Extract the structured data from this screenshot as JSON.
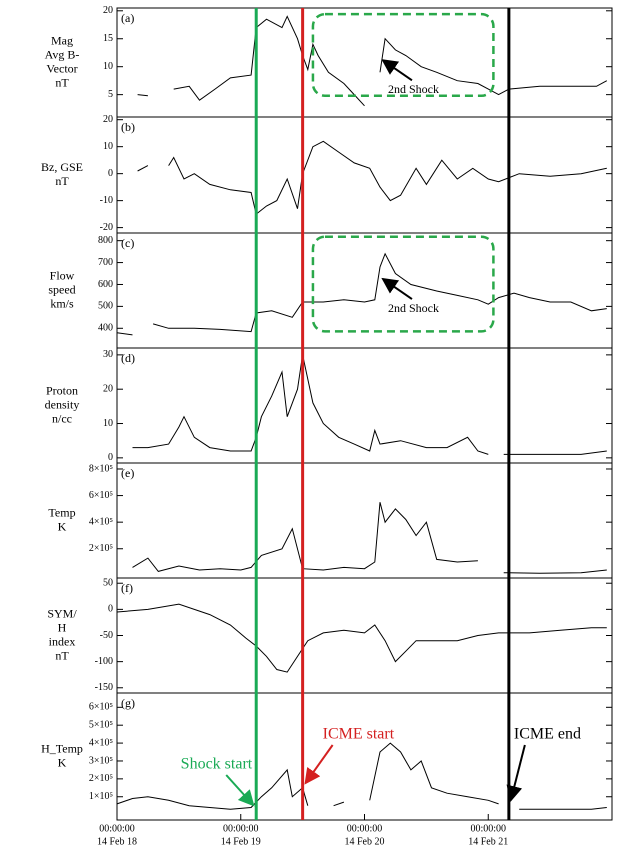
{
  "chart_data": [
    {
      "type": "line",
      "label": "(a)",
      "ylabel": [
        "Mag",
        "Avg B-",
        "Vector",
        "nT"
      ],
      "color": "#000000",
      "xlim": [
        "2014-02-18T00:00",
        "2014-02-22T00:00"
      ],
      "ylim": [
        1,
        20.5
      ],
      "yticks": [
        5,
        10,
        15,
        20
      ],
      "x": [
        "2014-02-18T04:00",
        "2014-02-18T06:00",
        "2014-02-18T08:00",
        "2014-02-18T11:00",
        "2014-02-18T14:00",
        "2014-02-18T16:00",
        "2014-02-18T19:00",
        "2014-02-18T22:00",
        "2014-02-19T02:00",
        "2014-02-19T03:00",
        "2014-02-19T05:00",
        "2014-02-19T08:00",
        "2014-02-19T09:00",
        "2014-02-19T11:00",
        "2014-02-19T12:00",
        "2014-02-19T13:00",
        "2014-02-19T14:00",
        "2014-02-19T15:00",
        "2014-02-19T17:00",
        "2014-02-19T20:00",
        "2014-02-19T22:00",
        "2014-02-20T00:00",
        "2014-02-20T01:00",
        "2014-02-20T03:00",
        "2014-02-20T04:00",
        "2014-02-20T06:00",
        "2014-02-20T08:00",
        "2014-02-20T11:00",
        "2014-02-20T14:00",
        "2014-02-20T18:00",
        "2014-02-20T22:00",
        "2014-02-21T00:00",
        "2014-02-21T02:00",
        "2014-02-21T04:00",
        "2014-02-21T10:00",
        "2014-02-21T16:00",
        "2014-02-21T21:00",
        "2014-02-21T23:00"
      ],
      "values": [
        5,
        4.8,
        null,
        6,
        6.5,
        4,
        6,
        8,
        8.5,
        17,
        18.5,
        17,
        19,
        15,
        12,
        9.5,
        14,
        12,
        9,
        7,
        5,
        3,
        null,
        9,
        15,
        13,
        12,
        10,
        9,
        7.5,
        7,
        6,
        5,
        6,
        6.5,
        6.5,
        6.5,
        7.5
      ],
      "box": {
        "x": [
          "2014-02-19T14:00",
          "2014-02-21T01:00"
        ],
        "y": [
          4.8,
          19.4
        ],
        "color": "#2aa84a"
      },
      "annotation": {
        "text": "2nd Shock",
        "x": "2014-02-20T03:00",
        "y": 11.5
      }
    },
    {
      "type": "line",
      "label": "(b)",
      "ylabel": [
        "Bz, GSE",
        "nT"
      ],
      "color": "#000000",
      "xlim": [
        "2014-02-18T00:00",
        "2014-02-22T00:00"
      ],
      "ylim": [
        -22,
        21
      ],
      "yticks": [
        -20,
        -10,
        0,
        10,
        20
      ],
      "x": [
        "2014-02-18T04:00",
        "2014-02-18T06:00",
        "2014-02-18T08:00",
        "2014-02-18T10:00",
        "2014-02-18T11:00",
        "2014-02-18T13:00",
        "2014-02-18T15:00",
        "2014-02-18T18:00",
        "2014-02-18T22:00",
        "2014-02-19T02:00",
        "2014-02-19T03:00",
        "2014-02-19T05:00",
        "2014-02-19T07:00",
        "2014-02-19T09:00",
        "2014-02-19T11:00",
        "2014-02-19T12:00",
        "2014-02-19T14:00",
        "2014-02-19T16:00",
        "2014-02-19T19:00",
        "2014-02-19T22:00",
        "2014-02-20T01:00",
        "2014-02-20T03:00",
        "2014-02-20T05:00",
        "2014-02-20T07:00",
        "2014-02-20T10:00",
        "2014-02-20T12:00",
        "2014-02-20T15:00",
        "2014-02-20T18:00",
        "2014-02-20T21:00",
        "2014-02-21T00:00",
        "2014-02-21T02:00",
        "2014-02-21T06:00",
        "2014-02-21T12:00",
        "2014-02-21T18:00",
        "2014-02-21T23:00"
      ],
      "values": [
        1,
        3,
        null,
        3,
        6,
        -2,
        0,
        -4,
        -6,
        -7,
        -15,
        -12,
        -10,
        -2,
        -13,
        0,
        10,
        12,
        8,
        4,
        2,
        -5,
        -10,
        -8,
        2,
        -4,
        5,
        -2,
        2,
        -2,
        -3,
        0,
        -1,
        0,
        2
      ]
    },
    {
      "type": "line",
      "label": "(c)",
      "ylabel": [
        "Flow",
        "speed",
        "km/s"
      ],
      "color": "#000000",
      "xlim": [
        "2014-02-18T00:00",
        "2014-02-22T00:00"
      ],
      "ylim": [
        310,
        835
      ],
      "yticks": [
        400,
        500,
        600,
        700,
        800
      ],
      "x": [
        "2014-02-18T00:00",
        "2014-02-18T03:00",
        "2014-02-18T05:00",
        "2014-02-18T07:00",
        "2014-02-18T10:00",
        "2014-02-18T15:00",
        "2014-02-18T20:00",
        "2014-02-19T02:00",
        "2014-02-19T03:00",
        "2014-02-19T06:00",
        "2014-02-19T10:00",
        "2014-02-19T12:00",
        "2014-02-19T16:00",
        "2014-02-19T20:00",
        "2014-02-20T00:00",
        "2014-02-20T02:00",
        "2014-02-20T03:00",
        "2014-02-20T04:00",
        "2014-02-20T06:00",
        "2014-02-20T09:00",
        "2014-02-20T14:00",
        "2014-02-20T18:00",
        "2014-02-20T22:00",
        "2014-02-21T00:00",
        "2014-02-21T02:00",
        "2014-02-21T05:00",
        "2014-02-21T08:00",
        "2014-02-21T12:00",
        "2014-02-21T16:00",
        "2014-02-21T20:00",
        "2014-02-21T23:00"
      ],
      "values": [
        380,
        370,
        null,
        420,
        400,
        400,
        395,
        385,
        470,
        480,
        450,
        520,
        520,
        530,
        520,
        530,
        680,
        740,
        650,
        600,
        570,
        550,
        530,
        510,
        540,
        560,
        540,
        520,
        520,
        480,
        490
      ],
      "box": {
        "x": [
          "2014-02-19T14:00",
          "2014-02-21T01:00"
        ],
        "y": [
          386,
          818
        ],
        "color": "#2aa84a"
      },
      "annotation": {
        "text": "2nd Shock",
        "x": "2014-02-20T03:00",
        "y": 634
      }
    },
    {
      "type": "line",
      "label": "(d)",
      "ylabel": [
        "Proton",
        "density",
        "n/cc"
      ],
      "color": "#000000",
      "xlim": [
        "2014-02-18T00:00",
        "2014-02-22T00:00"
      ],
      "ylim": [
        -1.5,
        32
      ],
      "yticks": [
        0,
        10,
        20,
        30
      ],
      "x": [
        "2014-02-18T03:00",
        "2014-02-18T06:00",
        "2014-02-18T10:00",
        "2014-02-18T12:00",
        "2014-02-18T13:00",
        "2014-02-18T15:00",
        "2014-02-18T18:00",
        "2014-02-18T22:00",
        "2014-02-19T02:00",
        "2014-02-19T03:00",
        "2014-02-19T04:00",
        "2014-02-19T06:00",
        "2014-02-19T08:00",
        "2014-02-19T09:00",
        "2014-02-19T11:00",
        "2014-02-19T12:00",
        "2014-02-19T14:00",
        "2014-02-19T16:00",
        "2014-02-19T19:00",
        "2014-02-19T22:00",
        "2014-02-20T01:00",
        "2014-02-20T02:00",
        "2014-02-20T03:00",
        "2014-02-20T07:00",
        "2014-02-20T12:00",
        "2014-02-20T16:00",
        "2014-02-20T20:00",
        "2014-02-20T22:00",
        "2014-02-21T00:00",
        "2014-02-21T01:00",
        "2014-02-21T03:00",
        "2014-02-21T10:00",
        "2014-02-21T18:00",
        "2014-02-21T23:00"
      ],
      "values": [
        3,
        3,
        4,
        9,
        12,
        6,
        3,
        2,
        2,
        6,
        12,
        18,
        25,
        12,
        20,
        30,
        16,
        10,
        6,
        4,
        2,
        8,
        4,
        5,
        3,
        3,
        6,
        2,
        1,
        null,
        1,
        1,
        1,
        2
      ]
    },
    {
      "type": "line",
      "label": "(e)",
      "ylabel": [
        "Temp",
        "K"
      ],
      "color": "#000000",
      "xlim": [
        "2014-02-18T00:00",
        "2014-02-22T00:00"
      ],
      "ylim": [
        -20000,
        845000
      ],
      "yticks": [
        {
          "value": 200000,
          "label": "2×10⁵"
        },
        {
          "value": 400000,
          "label": "4×10⁵"
        },
        {
          "value": 600000,
          "label": "6×10⁵"
        },
        {
          "value": 800000,
          "label": "8×10⁵"
        }
      ],
      "x": [
        "2014-02-18T03:00",
        "2014-02-18T06:00",
        "2014-02-18T08:00",
        "2014-02-18T12:00",
        "2014-02-18T16:00",
        "2014-02-18T20:00",
        "2014-02-19T00:00",
        "2014-02-19T02:00",
        "2014-02-19T04:00",
        "2014-02-19T08:00",
        "2014-02-19T10:00",
        "2014-02-19T12:00",
        "2014-02-19T16:00",
        "2014-02-19T20:00",
        "2014-02-20T00:00",
        "2014-02-20T02:00",
        "2014-02-20T03:00",
        "2014-02-20T04:00",
        "2014-02-20T06:00",
        "2014-02-20T08:00",
        "2014-02-20T10:00",
        "2014-02-20T12:00",
        "2014-02-20T14:00",
        "2014-02-20T18:00",
        "2014-02-20T22:00",
        "2014-02-20T23:00",
        "2014-02-21T03:00",
        "2014-02-21T10:00",
        "2014-02-21T18:00",
        "2014-02-21T23:00"
      ],
      "values": [
        60000,
        130000,
        30000,
        70000,
        40000,
        50000,
        40000,
        60000,
        150000,
        200000,
        350000,
        50000,
        40000,
        60000,
        50000,
        100000,
        550000,
        400000,
        500000,
        420000,
        300000,
        400000,
        120000,
        100000,
        110000,
        null,
        20000,
        15000,
        20000,
        40000
      ]
    },
    {
      "type": "line",
      "label": "(f)",
      "ylabel": [
        "SYM/",
        "H",
        "index",
        "nT"
      ],
      "color": "#000000",
      "xlim": [
        "2014-02-18T00:00",
        "2014-02-22T00:00"
      ],
      "ylim": [
        -160,
        60
      ],
      "yticks": [
        -150,
        -100,
        -50,
        0,
        50
      ],
      "x": [
        "2014-02-18T00:00",
        "2014-02-18T06:00",
        "2014-02-18T12:00",
        "2014-02-18T18:00",
        "2014-02-18T22:00",
        "2014-02-19T01:00",
        "2014-02-19T03:00",
        "2014-02-19T05:00",
        "2014-02-19T07:00",
        "2014-02-19T09:00",
        "2014-02-19T11:00",
        "2014-02-19T13:00",
        "2014-02-19T16:00",
        "2014-02-19T20:00",
        "2014-02-20T00:00",
        "2014-02-20T02:00",
        "2014-02-20T04:00",
        "2014-02-20T06:00",
        "2014-02-20T08:00",
        "2014-02-20T10:00",
        "2014-02-20T14:00",
        "2014-02-20T18:00",
        "2014-02-20T22:00",
        "2014-02-21T02:00",
        "2014-02-21T08:00",
        "2014-02-21T14:00",
        "2014-02-21T20:00",
        "2014-02-21T23:00"
      ],
      "values": [
        -5,
        0,
        10,
        -10,
        -30,
        -55,
        -70,
        -90,
        -115,
        -120,
        -90,
        -60,
        -45,
        -40,
        -45,
        -30,
        -60,
        -100,
        -80,
        -60,
        -60,
        -60,
        -50,
        -45,
        -45,
        -40,
        -35,
        -35
      ]
    },
    {
      "type": "line",
      "label": "(g)",
      "ylabel": [
        "H_Temp",
        "K"
      ],
      "color": "#000000",
      "xlim": [
        "2014-02-18T00:00",
        "2014-02-22T00:00"
      ],
      "ylim": [
        -30000,
        680000
      ],
      "yticks": [
        {
          "value": 100000,
          "label": "1×10⁵"
        },
        {
          "value": 200000,
          "label": "2×10⁵"
        },
        {
          "value": 300000,
          "label": "3×10⁵"
        },
        {
          "value": 400000,
          "label": "4×10⁵"
        },
        {
          "value": 500000,
          "label": "5×10⁵"
        },
        {
          "value": 600000,
          "label": "6×10⁵"
        }
      ],
      "xticks": [
        {
          "value": "2014-02-18T00:00",
          "label": [
            "00:00:00",
            "14 Feb 18"
          ]
        },
        {
          "value": "2014-02-19T00:00",
          "label": [
            "00:00:00",
            "14 Feb 19"
          ]
        },
        {
          "value": "2014-02-20T00:00",
          "label": [
            "00:00:00",
            "14 Feb 20"
          ]
        },
        {
          "value": "2014-02-21T00:00",
          "label": [
            "00:00:00",
            "14 Feb 21"
          ]
        }
      ],
      "x": [
        "2014-02-18T00:00",
        "2014-02-18T03:00",
        "2014-02-18T06:00",
        "2014-02-18T10:00",
        "2014-02-18T14:00",
        "2014-02-18T18:00",
        "2014-02-18T22:00",
        "2014-02-19T02:00",
        "2014-02-19T04:00",
        "2014-02-19T06:00",
        "2014-02-19T09:00",
        "2014-02-19T10:00",
        "2014-02-19T12:00",
        "2014-02-19T13:00",
        "2014-02-19T15:00",
        "2014-02-19T18:00",
        "2014-02-19T20:00",
        "2014-02-19T22:00",
        "2014-02-20T01:00",
        "2014-02-20T03:00",
        "2014-02-20T05:00",
        "2014-02-20T07:00",
        "2014-02-20T09:00",
        "2014-02-20T11:00",
        "2014-02-20T13:00",
        "2014-02-20T16:00",
        "2014-02-20T20:00",
        "2014-02-21T00:00",
        "2014-02-21T02:00",
        "2014-02-21T03:00",
        "2014-02-21T06:00",
        "2014-02-21T13:00",
        "2014-02-21T20:00",
        "2014-02-21T23:00"
      ],
      "values": [
        60000,
        90000,
        100000,
        80000,
        50000,
        40000,
        30000,
        40000,
        100000,
        150000,
        250000,
        100000,
        150000,
        50000,
        null,
        50000,
        70000,
        null,
        80000,
        350000,
        400000,
        350000,
        250000,
        300000,
        150000,
        120000,
        100000,
        80000,
        60000,
        null,
        30000,
        30000,
        30000,
        40000
      ],
      "events": [
        {
          "label": "Shock start",
          "x": "2014-02-19T03:00",
          "color": "#1aaa55"
        },
        {
          "label": "ICME start",
          "x": "2014-02-19T12:00",
          "color": "#d42020"
        },
        {
          "label": "ICME end",
          "x": "2014-02-21T04:00",
          "color": "#000000"
        }
      ]
    }
  ]
}
